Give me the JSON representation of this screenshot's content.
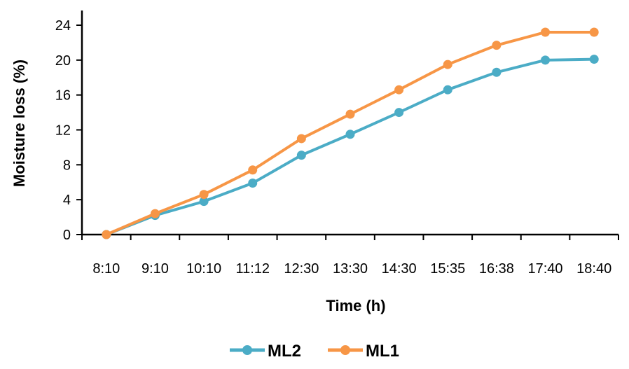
{
  "chart_data": {
    "type": "line",
    "categories": [
      "8:10",
      "9:10",
      "10:10",
      "11:12",
      "12:30",
      "13:30",
      "14:30",
      "15:35",
      "16:38",
      "17:40",
      "18:40"
    ],
    "series": [
      {
        "name": "ML2",
        "color": "#4bacc6",
        "values": [
          0,
          2.2,
          3.8,
          5.9,
          9.1,
          11.5,
          14.0,
          16.6,
          18.6,
          20.0,
          20.1
        ]
      },
      {
        "name": "ML1",
        "color": "#f79646",
        "values": [
          0,
          2.4,
          4.6,
          7.4,
          11.0,
          13.8,
          16.6,
          19.5,
          21.7,
          23.2,
          23.2
        ]
      }
    ],
    "xlabel": "Time (h)",
    "ylabel": "Moisture loss (%)",
    "ylim": [
      0,
      24
    ],
    "yticks": [
      0,
      4,
      8,
      12,
      16,
      20,
      24
    ],
    "grid": false,
    "legend_position": "bottom"
  }
}
